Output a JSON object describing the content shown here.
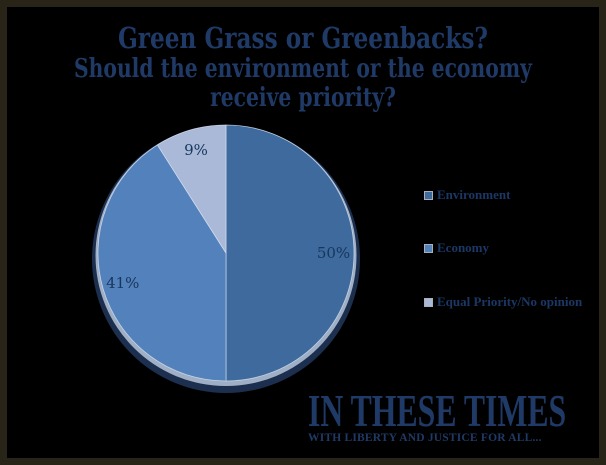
{
  "page": {
    "background": "#000000",
    "frame_color": "#282418"
  },
  "header": {
    "title": "Green Grass or Greenbacks?",
    "subtitle_lines": [
      "Should the environment or the economy",
      "receive priority?"
    ]
  },
  "chart_data": {
    "type": "pie",
    "title": "Green Grass or Greenbacks?",
    "question": "Should the environment or the economy receive priority?",
    "direction": "clockwise",
    "start_angle_deg": 0,
    "legend_position": "right",
    "slices": [
      {
        "label": "Environment",
        "value": 50,
        "display": "50%",
        "color": "#3e6a9d"
      },
      {
        "label": "Economy",
        "value": 41,
        "display": "41%",
        "color": "#5381bb"
      },
      {
        "label": "Equal Priority/No opinion",
        "value": 9,
        "display": "9%",
        "color": "#aab9d8"
      }
    ],
    "colors": {
      "data_label": "#17365d",
      "legend_text": "#1b3764",
      "title_text": "#1f3a66",
      "pie_bottom_shadow": "#1c2f4e",
      "pie_rim_highlight": "#9fafc6",
      "slice_divider": "rgba(215,224,238,0.8)"
    }
  },
  "branding": {
    "logo_text": "IN THESE TIMES",
    "tagline": "WITH LIBERTY AND JUSTICE FOR ALL..."
  }
}
